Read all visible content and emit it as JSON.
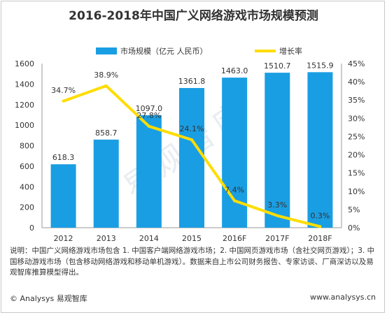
{
  "title": "2016-2018年中国广义网络游戏市场规模预测",
  "legend": {
    "bar_label": "市场规模（亿元 人民币）",
    "line_label": "增长率"
  },
  "note": "说明：中国广义网络游戏市场包含 1. 中国客户端网络游戏市场；2. 中国网页游戏市场（含社交网页游戏）；3. 中国移动游戏市场（包含移动网络游戏和移动单机游戏）。数据来自上市公司财务报告、专家访谈、厂商深访以及易观智库推算模型得出。",
  "footer_left": "© Analysys 易观智库",
  "footer_right": "www.analysys.cn",
  "watermark": "易观智库",
  "colors": {
    "bar": "#1a9ee3",
    "line": "#ffdd00",
    "axis": "#999999"
  },
  "chart_data": {
    "type": "bar+line",
    "title": "2016-2018年中国广义网络游戏市场规模预测",
    "categories": [
      "2012",
      "2013",
      "2014",
      "2015",
      "2016F",
      "2017F",
      "2018F"
    ],
    "series": [
      {
        "name": "市场规模（亿元 人民币）",
        "type": "bar",
        "axis": "left",
        "values": [
          618.3,
          858.7,
          1097.0,
          1361.8,
          1463.0,
          1510.7,
          1515.9
        ],
        "labels": [
          "618.3",
          "858.7",
          "1097.0",
          "1361.8",
          "1463.0",
          "1510.7",
          "1515.9"
        ]
      },
      {
        "name": "增长率",
        "type": "line",
        "axis": "right",
        "values": [
          34.7,
          38.9,
          27.8,
          24.1,
          7.4,
          3.3,
          0.3
        ],
        "labels": [
          "34.7%",
          "38.9%",
          "27.8%",
          "24.1%",
          "7.4%",
          "3.3%",
          "0.3%"
        ]
      }
    ],
    "y_left": {
      "min": 0,
      "max": 1600,
      "ticks": [
        "0",
        "200",
        "400",
        "600",
        "800",
        "1000",
        "1200",
        "1400",
        "1600"
      ]
    },
    "y_right": {
      "min": 0,
      "max": 45,
      "ticks": [
        "0%",
        "5%",
        "10%",
        "15%",
        "20%",
        "25%",
        "30%",
        "35%",
        "40%",
        "45%"
      ]
    },
    "grid": false,
    "legend_position": "top"
  }
}
